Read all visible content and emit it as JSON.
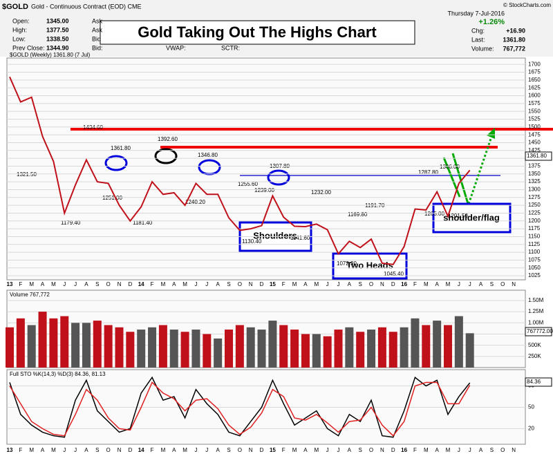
{
  "header": {
    "symbol": "$GOLD",
    "description": "Gold - Continuous Contract (EOD) CME",
    "copyright": "© StockCharts.com",
    "date": "Thursday   7-Jul-2016",
    "left": [
      [
        "Open:",
        "1345.00"
      ],
      [
        "High:",
        "1377.50"
      ],
      [
        "Low:",
        "1338.50"
      ],
      [
        "Prev Close:",
        "1344.90"
      ]
    ],
    "mid": [
      "Ask",
      "Ask",
      "Bid",
      "Bid:"
    ],
    "mid2": [
      "VWAP:",
      "SCTR:"
    ],
    "pct": "+1.26%",
    "right": [
      [
        "Chg:",
        "+16.90"
      ],
      [
        "Last:",
        "1361.80"
      ],
      [
        "Volume:",
        "767,772"
      ]
    ],
    "title": "Gold Taking Out The Highs Chart",
    "callouts": [
      "Shoulders",
      "Two Heads",
      "shoulder/flag"
    ],
    "price_notes": [
      "1361.80",
      "1321.50",
      "1179.40",
      "1434.60",
      "1251.00",
      "1392.60",
      "1181.40",
      "1346.80",
      "1240.20",
      "1255.60",
      "1239.00",
      "1307.80",
      "1130.40",
      "1141.60",
      "1232.00",
      "1169.80",
      "1191.70",
      "1072.30",
      "1045.40",
      "1287.80",
      "1306.00",
      "1265.00",
      "1201.50"
    ],
    "tags": [
      "1361.80",
      "767772.00",
      "84.36"
    ]
  },
  "chart_data": [
    {
      "type": "line",
      "categories": [
        "13",
        "F",
        "M",
        "A",
        "M",
        "J",
        "J",
        "A",
        "S",
        "O",
        "N",
        "D",
        "14",
        "F",
        "M",
        "A",
        "M",
        "J",
        "J",
        "A",
        "S",
        "O",
        "N",
        "D",
        "15",
        "F",
        "M",
        "A",
        "M",
        "J",
        "J",
        "A",
        "S",
        "O",
        "N",
        "D",
        "16",
        "F",
        "M",
        "A",
        "M",
        "J",
        "J",
        "A",
        "S",
        "O",
        "N"
      ],
      "series": [
        {
          "name": "$GOLD (Weekly) 1361.80 (7 Jul)",
          "color": "#c0101a",
          "values": [
            1660,
            1580,
            1595,
            1470,
            1390,
            1225,
            1315,
            1395,
            1325,
            1320,
            1250,
            1200,
            1245,
            1325,
            1285,
            1290,
            1250,
            1320,
            1285,
            1285,
            1210,
            1170,
            1175,
            1185,
            1280,
            1212,
            1183,
            1182,
            1190,
            1172,
            1095,
            1135,
            1115,
            1142,
            1065,
            1061,
            1118,
            1238,
            1235,
            1293,
            1215,
            1320,
            1361.8,
            null,
            null,
            null,
            null
          ]
        }
      ],
      "ylim": [
        1012,
        1718
      ],
      "yticks": [
        1025,
        1050,
        1075,
        1100,
        1125,
        1150,
        1175,
        1200,
        1225,
        1250,
        1275,
        1300,
        1325,
        1350,
        1375,
        1400,
        1425,
        1450,
        1475,
        1500,
        1525,
        1550,
        1575,
        1600,
        1625,
        1650,
        1675,
        1700
      ],
      "grid": true
    },
    {
      "type": "bar",
      "series": [
        {
          "name": "Volume 767,772",
          "color": "#c0101a",
          "values": [
            900000,
            1100000,
            950000,
            1250000,
            1100000,
            1150000,
            1000000,
            1000000,
            1050000,
            950000,
            900000,
            800000,
            850000,
            900000,
            950000,
            850000,
            800000,
            850000,
            750000,
            650000,
            850000,
            950000,
            900000,
            850000,
            1050000,
            950000,
            850000,
            750000,
            750000,
            700000,
            850000,
            900000,
            800000,
            850000,
            900000,
            800000,
            900000,
            1100000,
            950000,
            1050000,
            950000,
            1150000,
            767772,
            null,
            null,
            null,
            null
          ]
        }
      ],
      "ylim": [
        0,
        1700000
      ],
      "yticks": [
        {
          "value": 250000,
          "label": "250K"
        },
        {
          "value": 500000,
          "label": "500K"
        },
        {
          "value": 750000,
          "label": "750K"
        },
        {
          "value": 1000000,
          "label": "1.00M"
        },
        {
          "value": 1250000,
          "label": "1.25M"
        },
        {
          "value": 1500000,
          "label": "1.50M"
        }
      ],
      "grid": true
    },
    {
      "type": "line",
      "title": "Full STO %K(14,3) %D(3) 84.36, 81.13",
      "series": [
        {
          "color": "#000000",
          "values": [
            85,
            40,
            25,
            15,
            10,
            8,
            60,
            88,
            45,
            30,
            15,
            20,
            70,
            92,
            60,
            65,
            35,
            75,
            55,
            40,
            15,
            10,
            30,
            50,
            88,
            55,
            25,
            35,
            45,
            20,
            10,
            40,
            30,
            60,
            10,
            8,
            45,
            92,
            80,
            88,
            40,
            65,
            84.36,
            null,
            null,
            null,
            null
          ]
        },
        {
          "color": "#e02020",
          "values": [
            80,
            55,
            30,
            20,
            12,
            10,
            40,
            75,
            60,
            35,
            20,
            18,
            50,
            85,
            70,
            62,
            45,
            60,
            62,
            48,
            25,
            12,
            22,
            42,
            75,
            65,
            35,
            32,
            40,
            28,
            15,
            30,
            32,
            50,
            25,
            10,
            30,
            80,
            85,
            85,
            55,
            55,
            81.13,
            null,
            null,
            null,
            null
          ]
        }
      ],
      "ylim": [
        0,
        100
      ],
      "yticks": [
        20,
        50,
        80
      ],
      "grid": true
    }
  ]
}
